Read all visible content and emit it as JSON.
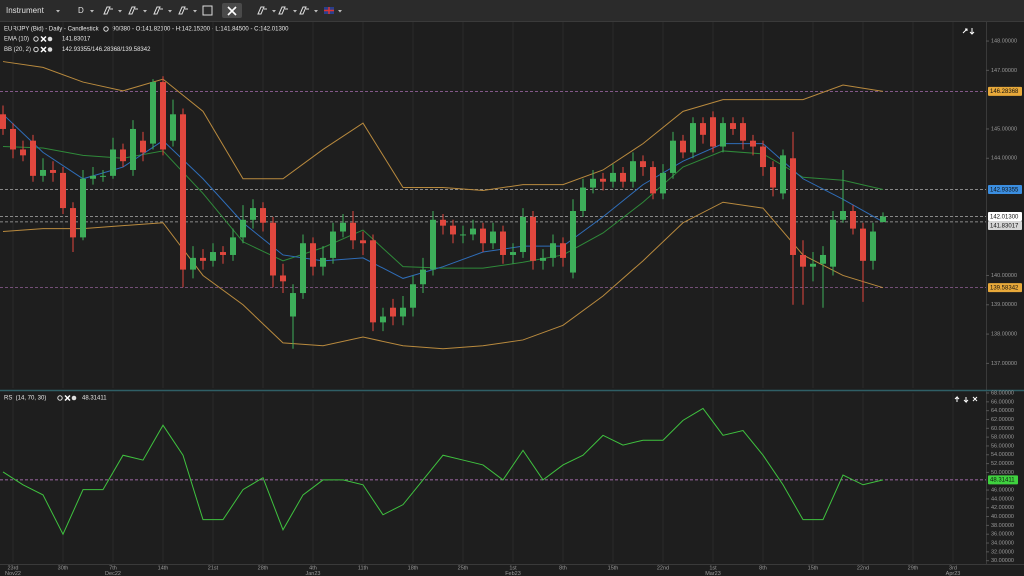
{
  "toolbar": {
    "instrument": "Instrument",
    "timeframe": "D"
  },
  "chart_data": [
    {
      "type": "candlestick",
      "title": "EUR/JPY (Bid) - Daily - Candlestick",
      "subtitle": "90/380 - O:141.82100 - H:142.15200 - L:141.84500 - C:142.01300",
      "legend": [
        {
          "name": "EMA (10)",
          "value_text": "141.83017"
        },
        {
          "name": "BB (20, 2)",
          "value_text": "142.93355/146.28368/139.58342"
        }
      ],
      "up_color": "#3dae5a",
      "down_color": "#e0473e",
      "ohlc": [
        [
          145.5,
          145.8,
          144.8,
          145.0
        ],
        [
          145.0,
          145.2,
          144.0,
          144.3
        ],
        [
          144.3,
          144.6,
          143.9,
          144.1
        ],
        [
          144.6,
          144.8,
          143.2,
          143.4
        ],
        [
          143.4,
          144.0,
          143.2,
          143.6
        ],
        [
          143.6,
          143.9,
          143.2,
          143.5
        ],
        [
          143.5,
          143.7,
          142.1,
          142.3
        ],
        [
          142.3,
          142.5,
          140.8,
          141.3
        ],
        [
          141.3,
          143.6,
          141.2,
          143.3
        ],
        [
          143.3,
          143.7,
          143.1,
          143.4
        ],
        [
          143.4,
          143.6,
          143.2,
          143.4
        ],
        [
          143.4,
          144.7,
          143.3,
          144.3
        ],
        [
          144.3,
          144.5,
          143.7,
          143.9
        ],
        [
          143.6,
          145.3,
          143.4,
          145.0
        ],
        [
          144.6,
          144.9,
          143.9,
          144.2
        ],
        [
          144.5,
          146.7,
          144.3,
          146.6
        ],
        [
          146.6,
          146.8,
          144.1,
          144.3
        ],
        [
          144.6,
          146.0,
          144.4,
          145.5
        ],
        [
          145.5,
          145.7,
          139.6,
          140.2
        ],
        [
          140.2,
          141.0,
          139.9,
          140.6
        ],
        [
          140.6,
          140.9,
          140.2,
          140.5
        ],
        [
          140.5,
          141.1,
          140.3,
          140.8
        ],
        [
          140.8,
          141.0,
          140.4,
          140.7
        ],
        [
          140.7,
          141.6,
          140.5,
          141.3
        ],
        [
          141.3,
          142.4,
          141.1,
          141.9
        ],
        [
          141.9,
          142.6,
          141.6,
          142.3
        ],
        [
          142.3,
          142.5,
          141.5,
          141.8
        ],
        [
          141.8,
          142.0,
          139.6,
          140.0
        ],
        [
          140.0,
          140.4,
          139.4,
          139.8
        ],
        [
          138.6,
          139.7,
          137.5,
          139.4
        ],
        [
          139.4,
          141.4,
          139.2,
          141.1
        ],
        [
          141.1,
          141.3,
          140.0,
          140.3
        ],
        [
          140.3,
          141.0,
          140.0,
          140.6
        ],
        [
          140.6,
          141.8,
          140.4,
          141.5
        ],
        [
          141.5,
          142.1,
          141.3,
          141.8
        ],
        [
          141.8,
          142.2,
          140.9,
          141.2
        ],
        [
          141.2,
          141.5,
          140.7,
          141.1
        ],
        [
          141.2,
          141.4,
          138.1,
          138.4
        ],
        [
          138.4,
          138.9,
          138.1,
          138.6
        ],
        [
          138.9,
          139.2,
          138.3,
          138.6
        ],
        [
          138.6,
          139.3,
          138.3,
          138.9
        ],
        [
          138.9,
          140.0,
          138.6,
          139.7
        ],
        [
          139.7,
          140.6,
          139.4,
          140.2
        ],
        [
          140.2,
          142.2,
          140.0,
          141.9
        ],
        [
          141.9,
          142.1,
          141.4,
          141.7
        ],
        [
          141.7,
          141.9,
          141.1,
          141.4
        ],
        [
          141.4,
          141.7,
          141.1,
          141.4
        ],
        [
          141.4,
          141.9,
          141.2,
          141.6
        ],
        [
          141.6,
          141.8,
          140.8,
          141.1
        ],
        [
          141.1,
          141.8,
          140.9,
          141.5
        ],
        [
          141.5,
          141.7,
          140.4,
          140.7
        ],
        [
          140.7,
          141.1,
          140.4,
          140.8
        ],
        [
          140.8,
          142.3,
          140.6,
          142.0
        ],
        [
          142.0,
          142.2,
          140.2,
          140.5
        ],
        [
          140.5,
          140.9,
          140.2,
          140.6
        ],
        [
          140.6,
          141.4,
          140.3,
          141.1
        ],
        [
          141.1,
          141.3,
          140.3,
          140.6
        ],
        [
          140.1,
          142.6,
          139.9,
          142.2
        ],
        [
          142.2,
          143.3,
          142.0,
          143.0
        ],
        [
          143.0,
          143.6,
          142.8,
          143.3
        ],
        [
          143.3,
          143.5,
          142.9,
          143.2
        ],
        [
          143.2,
          143.8,
          143.0,
          143.5
        ],
        [
          143.5,
          143.7,
          143.0,
          143.2
        ],
        [
          143.2,
          144.2,
          143.0,
          143.9
        ],
        [
          143.9,
          144.1,
          143.4,
          143.7
        ],
        [
          143.7,
          143.9,
          142.6,
          142.8
        ],
        [
          142.8,
          143.8,
          142.6,
          143.5
        ],
        [
          143.5,
          144.9,
          143.3,
          144.6
        ],
        [
          144.6,
          144.8,
          144.0,
          144.2
        ],
        [
          144.2,
          145.4,
          144.0,
          145.2
        ],
        [
          145.2,
          145.4,
          144.5,
          144.8
        ],
        [
          145.4,
          145.6,
          144.2,
          144.4
        ],
        [
          144.4,
          145.4,
          144.2,
          145.2
        ],
        [
          145.2,
          145.4,
          144.8,
          145.0
        ],
        [
          145.2,
          145.4,
          144.3,
          144.6
        ],
        [
          144.6,
          144.8,
          144.1,
          144.4
        ],
        [
          144.4,
          144.6,
          143.4,
          143.7
        ],
        [
          143.7,
          143.9,
          142.7,
          143.0
        ],
        [
          142.8,
          144.3,
          142.6,
          144.1
        ],
        [
          144.0,
          144.9,
          139.0,
          140.7
        ],
        [
          140.7,
          141.2,
          139.0,
          140.3
        ],
        [
          140.3,
          140.8,
          139.8,
          140.4
        ],
        [
          140.4,
          141.0,
          138.9,
          140.7
        ],
        [
          140.3,
          142.2,
          140.0,
          141.9
        ],
        [
          141.9,
          143.6,
          141.8,
          142.2
        ],
        [
          142.2,
          142.4,
          141.4,
          141.6
        ],
        [
          141.6,
          141.8,
          139.1,
          140.5
        ],
        [
          140.5,
          141.8,
          140.2,
          141.5
        ],
        [
          141.821,
          142.152,
          141.845,
          142.013
        ]
      ],
      "overlays": {
        "x": [
          0,
          4,
          8,
          12,
          16,
          20,
          24,
          28,
          32,
          36,
          40,
          44,
          48,
          52,
          56,
          60,
          64,
          68,
          72,
          76,
          80,
          84,
          88
        ],
        "series": [
          {
            "color": "#b98a3e",
            "values": [
              147.3,
              147.1,
              146.6,
              146.3,
              146.7,
              145.6,
              143.3,
              143.3,
              144.3,
              145.2,
              143.0,
              143.0,
              142.9,
              143.1,
              143.1,
              143.6,
              144.5,
              145.6,
              146.0,
              146.0,
              146.0,
              146.5,
              146.28368
            ]
          },
          {
            "color": "#b98a3e",
            "values": [
              141.5,
              141.6,
              141.6,
              141.7,
              141.8,
              140.0,
              139.0,
              137.7,
              137.6,
              137.9,
              137.6,
              137.5,
              137.6,
              137.8,
              138.3,
              139.3,
              140.5,
              141.8,
              142.5,
              142.3,
              140.7,
              140.0,
              139.58342
            ]
          },
          {
            "color": "#2f8a3a",
            "values": [
              144.4,
              144.35,
              144.1,
              144.0,
              144.25,
              142.8,
              141.15,
              140.5,
              140.95,
              141.55,
              140.3,
              140.25,
              140.25,
              140.45,
              140.7,
              141.45,
              142.5,
              143.7,
              144.25,
              144.15,
              143.35,
              143.25,
              142.93355
            ]
          },
          {
            "color": "#2f6db8",
            "values": [
              145.5,
              144.2,
              143.3,
              143.7,
              144.6,
              143.3,
              141.8,
              140.7,
              140.5,
              140.6,
              139.9,
              140.3,
              140.8,
              141.0,
              141.0,
              142.0,
              143.1,
              143.9,
              144.5,
              144.5,
              143.3,
              142.6,
              141.83017
            ]
          }
        ]
      },
      "xlim": [
        -0.3,
        98.3
      ],
      "ylim": [
        136.16,
        148.65
      ],
      "yticks": [
        {
          "value": 137,
          "label": "137.00000"
        },
        {
          "value": 138,
          "label": "138.00000"
        },
        {
          "value": 139,
          "label": "139.00000"
        },
        {
          "value": 140,
          "label": "140.00000"
        },
        {
          "value": 144,
          "label": "144.00000"
        },
        {
          "value": 145,
          "label": "145.00000"
        },
        {
          "value": 147,
          "label": "147.00000"
        },
        {
          "value": 148,
          "label": "148.00000"
        }
      ],
      "price_badges": [
        {
          "value": 146.28368,
          "label": "146.28368",
          "color": "#e8a93a",
          "line": "#c67fcf"
        },
        {
          "value": 142.93355,
          "label": "142.93355",
          "color": "#3b8ee0",
          "line": "#cfcfcf"
        },
        {
          "value": 142.013,
          "label": "142.01300",
          "color": "#ffffff",
          "line": "#cfcfcf"
        },
        {
          "value": 141.83017,
          "label": "141.83017",
          "color": "#d6d6d6",
          "line": "#cfcfcf"
        },
        {
          "value": 139.58342,
          "label": "139.58342",
          "color": "#e8a93a",
          "line": "#c67fcf"
        }
      ]
    },
    {
      "type": "line",
      "title": "RSI (14, 70, 30)",
      "value_text": "48.31411",
      "color": "#3fc23f",
      "x": [
        0,
        2,
        4,
        6,
        8,
        10,
        12,
        14,
        16,
        18,
        20,
        22,
        24,
        26,
        28,
        30,
        32,
        34,
        36,
        38,
        40,
        42,
        44,
        46,
        48,
        50,
        52,
        54,
        56,
        58,
        60,
        62,
        64,
        66,
        68,
        70,
        72,
        74,
        76,
        78,
        80,
        82,
        84,
        86,
        88
      ],
      "values": [
        50.1,
        47.2,
        44.9,
        36.0,
        46.1,
        46.1,
        53.9,
        52.8,
        60.7,
        53.9,
        39.3,
        39.3,
        46.1,
        48.8,
        37.0,
        44.9,
        48.3,
        48.3,
        47.2,
        40.4,
        42.7,
        48.3,
        53.9,
        52.8,
        51.7,
        48.3,
        55.0,
        48.3,
        51.7,
        53.9,
        58.4,
        56.2,
        57.3,
        57.3,
        61.8,
        64.5,
        58.4,
        59.5,
        53.9,
        47.2,
        39.3,
        39.3,
        49.4,
        47.2,
        48.31411
      ],
      "xlim": [
        -0.3,
        98.3
      ],
      "ylim": [
        29.7,
        68.0
      ],
      "yticks": [
        {
          "value": 30,
          "label": "30.00000"
        },
        {
          "value": 32,
          "label": "32.00000"
        },
        {
          "value": 34,
          "label": "34.00000"
        },
        {
          "value": 36,
          "label": "36.00000"
        },
        {
          "value": 38,
          "label": "38.00000"
        },
        {
          "value": 40,
          "label": "40.00000"
        },
        {
          "value": 42,
          "label": "42.00000"
        },
        {
          "value": 44,
          "label": "44.00000"
        },
        {
          "value": 46,
          "label": "46.00000"
        },
        {
          "value": 50,
          "label": "50.00000"
        },
        {
          "value": 52,
          "label": "52.00000"
        },
        {
          "value": 54,
          "label": "54.00000"
        },
        {
          "value": 56,
          "label": "56.00000"
        },
        {
          "value": 58,
          "label": "58.00000"
        },
        {
          "value": 60,
          "label": "60.00000"
        },
        {
          "value": 62,
          "label": "62.00000"
        },
        {
          "value": 64,
          "label": "64.00000"
        },
        {
          "value": 66,
          "label": "66.00000"
        },
        {
          "value": 68,
          "label": "68.00000"
        }
      ],
      "badge": {
        "value": 48.31411,
        "label": "48.31411",
        "color": "#3fd23f"
      },
      "xticks": [
        {
          "value": 1,
          "label": "23rd",
          "sublabel": "Nov22"
        },
        {
          "value": 6,
          "label": "30th"
        },
        {
          "value": 11,
          "label": "7th",
          "sublabel": "Dec22"
        },
        {
          "value": 16,
          "label": "14th"
        },
        {
          "value": 21,
          "label": "21st"
        },
        {
          "value": 26,
          "label": "28th"
        },
        {
          "value": 31,
          "label": "4th",
          "sublabel": "Jan23"
        },
        {
          "value": 36,
          "label": "11th"
        },
        {
          "value": 41,
          "label": "18th"
        },
        {
          "value": 46,
          "label": "25th"
        },
        {
          "value": 51,
          "label": "1st",
          "sublabel": "Feb23"
        },
        {
          "value": 56,
          "label": "8th"
        },
        {
          "value": 61,
          "label": "15th"
        },
        {
          "value": 66,
          "label": "22nd"
        },
        {
          "value": 71,
          "label": "1st",
          "sublabel": "Mar23"
        },
        {
          "value": 76,
          "label": "8th"
        },
        {
          "value": 81,
          "label": "15th"
        },
        {
          "value": 86,
          "label": "22nd"
        },
        {
          "value": 91,
          "label": "29th"
        },
        {
          "value": 95,
          "label": "3rd",
          "sublabel": "Apr23"
        }
      ]
    }
  ]
}
